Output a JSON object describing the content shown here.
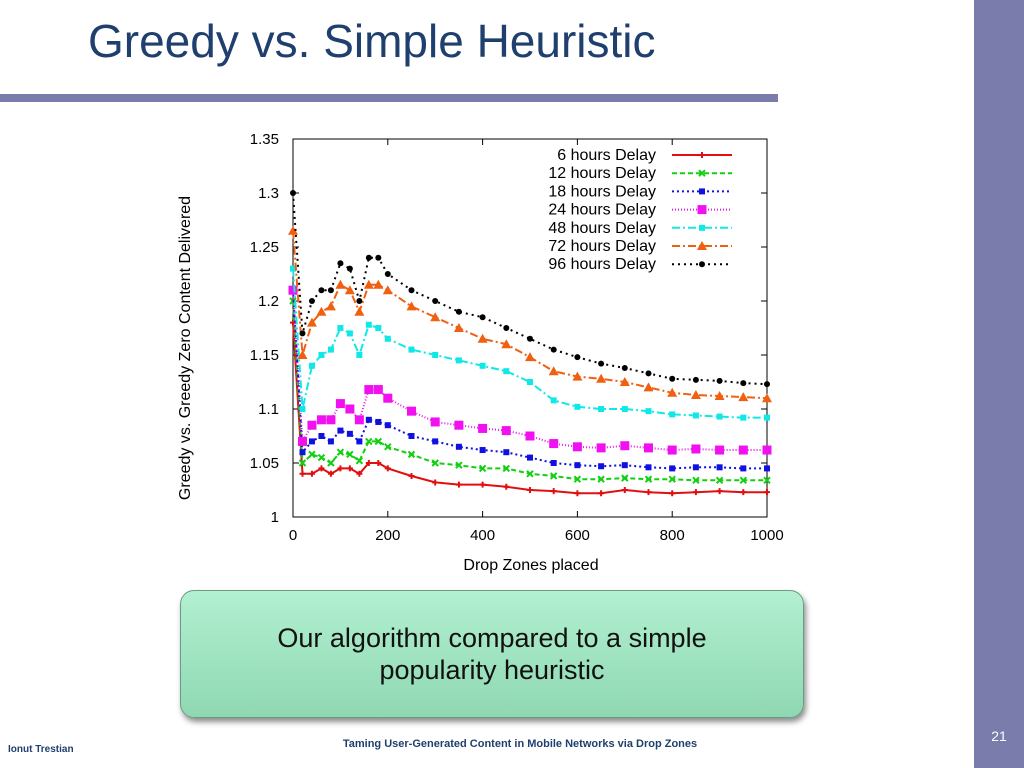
{
  "slide": {
    "title": "Greedy vs. Simple Heuristic",
    "callout": "Our algorithm compared to a simple popularity heuristic",
    "footer_author": "Ionut Trestian",
    "footer_title": "Taming User-Generated  Content in Mobile Networks via Drop Zones",
    "page_number": "21",
    "accent_color": "#7a7cab",
    "title_color": "#1f3f6e"
  },
  "chart_data": {
    "type": "line",
    "title": "",
    "xlabel": "Drop Zones placed",
    "ylabel": "Greedy vs. Greedy Zero Content Delivered",
    "xlim": [
      0,
      1000
    ],
    "ylim": [
      1,
      1.35
    ],
    "xticks": [
      "0",
      "200",
      "400",
      "600",
      "800",
      "1000"
    ],
    "yticks": [
      "1",
      "1.05",
      "1.1",
      "1.15",
      "1.2",
      "1.25",
      "1.3",
      "1.35"
    ],
    "grid": false,
    "legend_position": "top-right",
    "x": [
      0,
      20,
      40,
      60,
      80,
      100,
      120,
      140,
      160,
      180,
      200,
      250,
      300,
      350,
      400,
      450,
      500,
      550,
      600,
      650,
      700,
      750,
      800,
      850,
      900,
      950,
      1000
    ],
    "series": [
      {
        "name": "6 hours Delay",
        "color": "#e01010",
        "marker": "plus",
        "dash": "",
        "values": [
          1.18,
          1.04,
          1.04,
          1.045,
          1.04,
          1.045,
          1.045,
          1.04,
          1.05,
          1.05,
          1.045,
          1.038,
          1.032,
          1.03,
          1.03,
          1.028,
          1.025,
          1.024,
          1.022,
          1.022,
          1.025,
          1.023,
          1.022,
          1.023,
          1.024,
          1.023,
          1.023
        ]
      },
      {
        "name": "12 hours Delay",
        "color": "#10d010",
        "marker": "cross",
        "dash": "5,3",
        "values": [
          1.2,
          1.05,
          1.058,
          1.055,
          1.05,
          1.06,
          1.058,
          1.052,
          1.07,
          1.07,
          1.065,
          1.058,
          1.05,
          1.048,
          1.045,
          1.045,
          1.04,
          1.038,
          1.035,
          1.035,
          1.036,
          1.035,
          1.035,
          1.034,
          1.034,
          1.034,
          1.034
        ]
      },
      {
        "name": "18 hours Delay",
        "color": "#1010e0",
        "marker": "square",
        "dash": "2,3",
        "values": [
          1.21,
          1.06,
          1.07,
          1.075,
          1.07,
          1.08,
          1.077,
          1.07,
          1.09,
          1.088,
          1.085,
          1.075,
          1.07,
          1.065,
          1.062,
          1.06,
          1.055,
          1.05,
          1.048,
          1.047,
          1.048,
          1.046,
          1.045,
          1.046,
          1.046,
          1.045,
          1.045
        ]
      },
      {
        "name": "24 hours Delay",
        "color": "#f010f0",
        "marker": "bigsquare",
        "dash": "1,2",
        "values": [
          1.21,
          1.07,
          1.085,
          1.09,
          1.09,
          1.105,
          1.1,
          1.09,
          1.118,
          1.118,
          1.11,
          1.098,
          1.088,
          1.085,
          1.082,
          1.08,
          1.075,
          1.068,
          1.065,
          1.064,
          1.066,
          1.064,
          1.062,
          1.063,
          1.062,
          1.062,
          1.062
        ]
      },
      {
        "name": "48 hours Delay",
        "color": "#10e8e8",
        "marker": "square",
        "dash": "8,3,2,3",
        "values": [
          1.23,
          1.1,
          1.14,
          1.15,
          1.155,
          1.175,
          1.17,
          1.15,
          1.178,
          1.175,
          1.165,
          1.155,
          1.15,
          1.145,
          1.14,
          1.135,
          1.125,
          1.108,
          1.102,
          1.1,
          1.1,
          1.098,
          1.095,
          1.094,
          1.093,
          1.092,
          1.092
        ]
      },
      {
        "name": "72 hours Delay",
        "color": "#f06010",
        "marker": "triangle",
        "dash": "8,3,2,3",
        "values": [
          1.265,
          1.15,
          1.18,
          1.19,
          1.195,
          1.215,
          1.21,
          1.19,
          1.215,
          1.215,
          1.21,
          1.195,
          1.185,
          1.175,
          1.165,
          1.16,
          1.148,
          1.135,
          1.13,
          1.128,
          1.125,
          1.12,
          1.115,
          1.113,
          1.112,
          1.111,
          1.11
        ]
      },
      {
        "name": "96 hours Delay",
        "color": "#000000",
        "marker": "dot",
        "dash": "2,4",
        "values": [
          1.3,
          1.17,
          1.2,
          1.21,
          1.21,
          1.235,
          1.23,
          1.2,
          1.24,
          1.24,
          1.225,
          1.21,
          1.2,
          1.19,
          1.185,
          1.175,
          1.165,
          1.155,
          1.148,
          1.142,
          1.138,
          1.133,
          1.128,
          1.127,
          1.126,
          1.124,
          1.123
        ]
      }
    ]
  }
}
